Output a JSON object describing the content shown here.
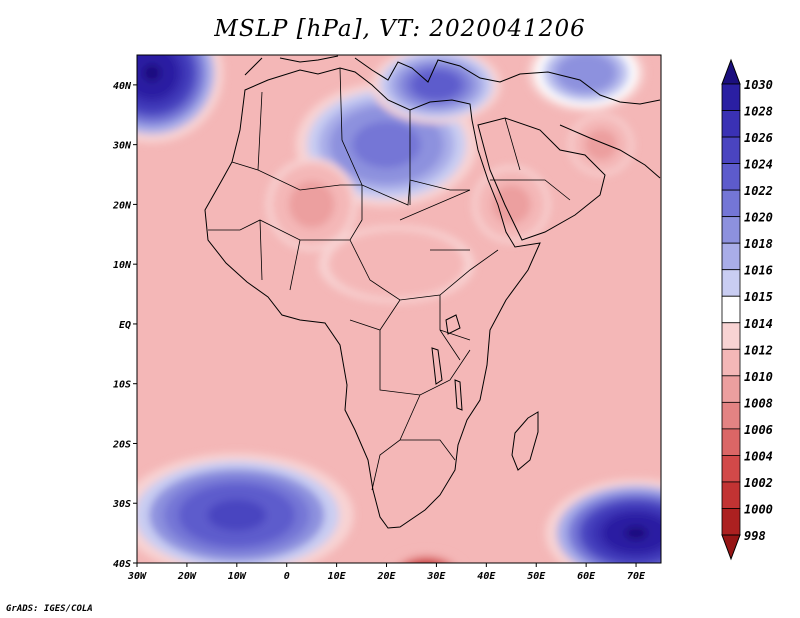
{
  "title": "MSLP [hPa], VT: 2020041206",
  "credit": "GrADS: IGES/COLA",
  "map": {
    "lon_labels": [
      "30W",
      "20W",
      "10W",
      "0",
      "10E",
      "20E",
      "30E",
      "40E",
      "50E",
      "60E",
      "70E"
    ],
    "lat_labels": [
      "40N",
      "30N",
      "20N",
      "10N",
      "EQ",
      "10S",
      "20S",
      "30S",
      "40S"
    ],
    "lon_range": [
      -30,
      75
    ],
    "lat_range": [
      -40,
      45
    ]
  },
  "pressure_fields": [
    {
      "name": "high-north-atlantic",
      "lon": -27,
      "lat": 42,
      "value": 1031,
      "sx": 11,
      "sy": 9
    },
    {
      "name": "high-north-africa",
      "lon": 20,
      "lat": 30,
      "value": 1022,
      "sx": 14,
      "sy": 8
    },
    {
      "name": "high-eastern-med",
      "lon": 30,
      "lat": 40,
      "value": 1024,
      "sx": 10,
      "sy": 5
    },
    {
      "name": "high-central-asia",
      "lon": 60,
      "lat": 42,
      "value": 1020,
      "sx": 9,
      "sy": 5
    },
    {
      "name": "high-south-atlantic",
      "lon": -10,
      "lat": -32,
      "value": 1025,
      "sx": 18,
      "sy": 8
    },
    {
      "name": "high-south-indian",
      "lon": 70,
      "lat": -35,
      "value": 1031,
      "sx": 14,
      "sy": 7
    },
    {
      "name": "low-south-africa",
      "lon": 28,
      "lat": -42,
      "value": 998,
      "sx": 6,
      "sy": 3
    },
    {
      "name": "low-west-africa",
      "lon": 5,
      "lat": 20,
      "value": 1009,
      "sx": 7,
      "sy": 6
    },
    {
      "name": "low-arabia",
      "lon": 45,
      "lat": 20,
      "value": 1009,
      "sx": 6,
      "sy": 5
    },
    {
      "name": "low-persia",
      "lon": 63,
      "lat": 30,
      "value": 1009,
      "sx": 5,
      "sy": 4
    },
    {
      "name": "low-central-africa",
      "lon": 22,
      "lat": 10,
      "value": 1010,
      "sx": 12,
      "sy": 5
    }
  ],
  "colorbar": {
    "levels": [
      "1030",
      "1028",
      "1026",
      "1024",
      "1022",
      "1020",
      "1018",
      "1016",
      "1015",
      "1014",
      "1012",
      "1010",
      "1008",
      "1006",
      "1004",
      "1002",
      "1000",
      "998"
    ],
    "colors": [
      "#1b0f7e",
      "#2a1fa2",
      "#3a31b4",
      "#4a44c0",
      "#5d5bcc",
      "#7476d6",
      "#8d91de",
      "#a9ade8",
      "#c9cdf2",
      "#ffffff",
      "#f8d3d3",
      "#f4b7b7",
      "#ec9f9f",
      "#e38383",
      "#db6666",
      "#d24949",
      "#c23333",
      "#ac2020",
      "#961515"
    ]
  },
  "coastline_color": "#000000",
  "borders_color": "#000000"
}
